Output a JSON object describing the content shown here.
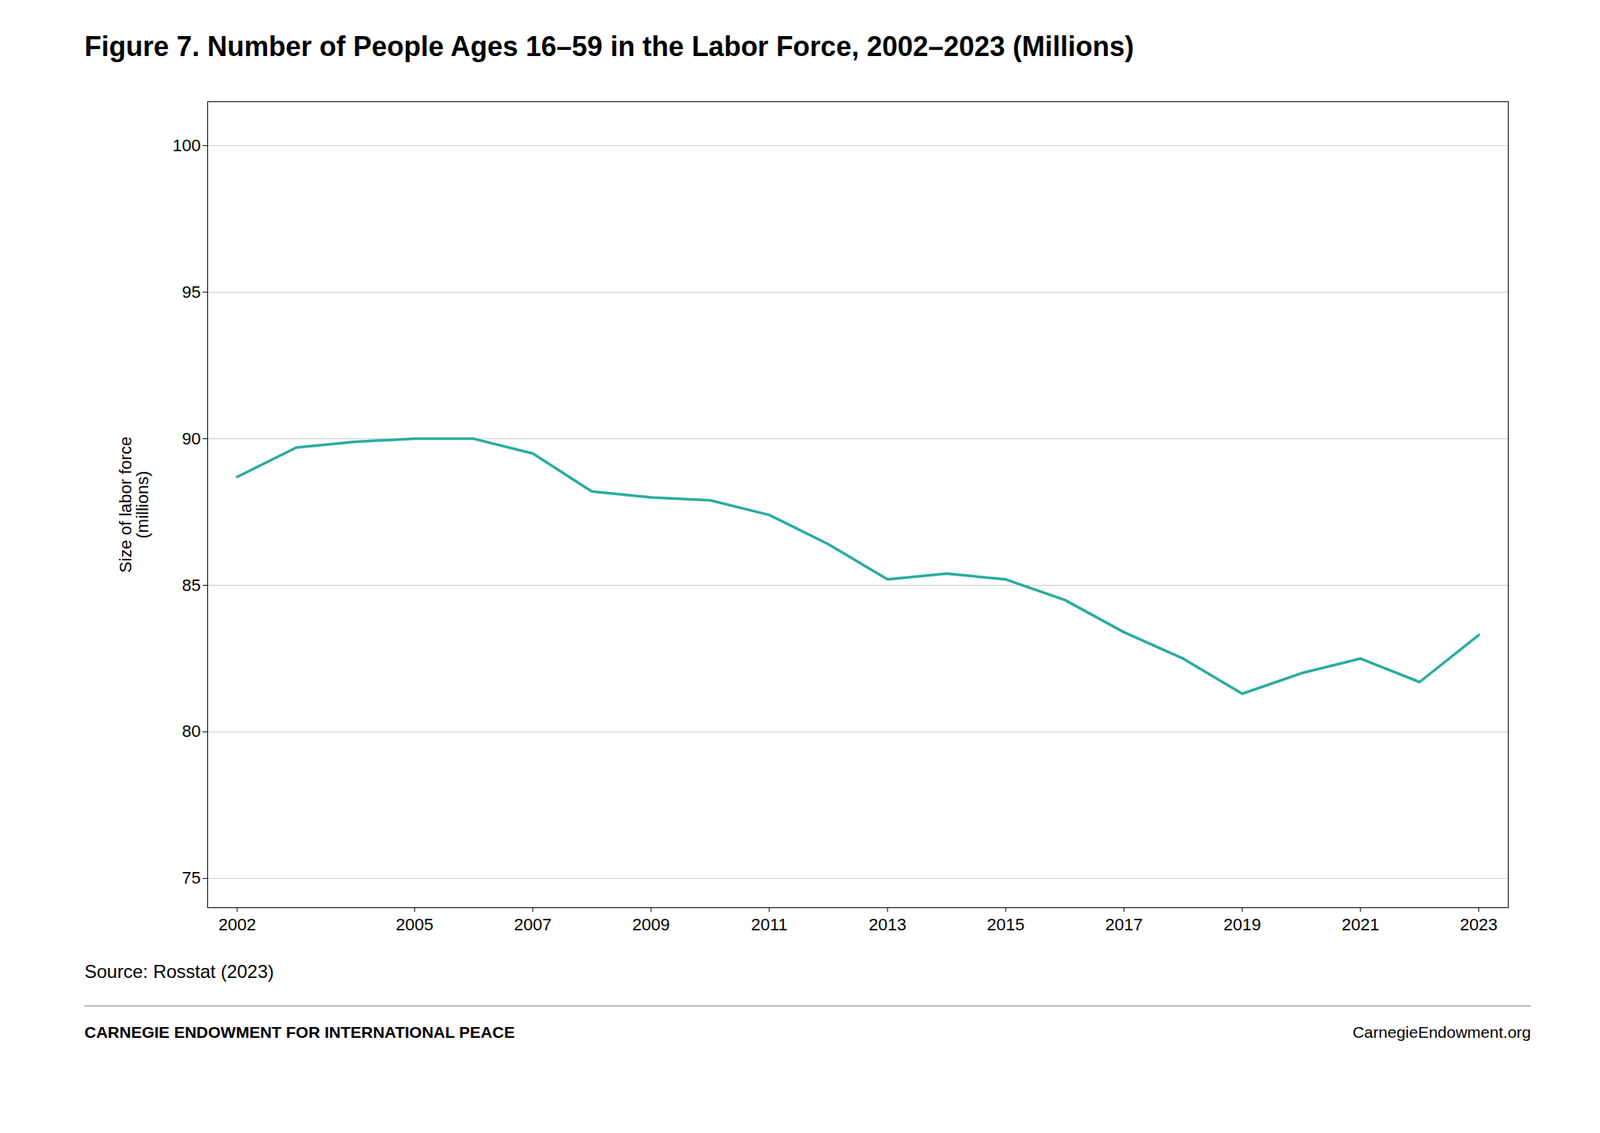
{
  "chart_data": {
    "type": "line",
    "title": "Figure 7. Number of People Ages 16–59 in the Labor Force, 2002–2023 (Millions)",
    "ylabel": "Size of labor force\n(millions)",
    "source": "Source: Rosstat (2023)",
    "footer": [
      "CARNEGIE ENDOWMENT FOR INTERNATIONAL PEACE",
      "CarnegieEndowment.org"
    ],
    "x": [
      2002,
      2003,
      2004,
      2005,
      2006,
      2007,
      2008,
      2009,
      2010,
      2011,
      2012,
      2013,
      2014,
      2015,
      2016,
      2017,
      2018,
      2019,
      2020,
      2021,
      2022,
      2023
    ],
    "values": [
      88.7,
      89.7,
      89.9,
      90.0,
      90.0,
      89.5,
      88.2,
      88.0,
      87.9,
      87.4,
      86.4,
      85.2,
      85.4,
      85.2,
      84.5,
      83.4,
      82.5,
      81.3,
      82.0,
      82.5,
      81.7,
      83.3
    ],
    "color": "#2aaca0",
    "xlim": [
      2001.5,
      2023.5
    ],
    "ylim": [
      74,
      101.5
    ],
    "xticks": [
      2002,
      2005,
      2007,
      2009,
      2011,
      2013,
      2015,
      2017,
      2019,
      2021,
      2023
    ],
    "yticks": [
      75,
      80,
      85,
      90,
      95,
      100
    ],
    "grid": true
  }
}
